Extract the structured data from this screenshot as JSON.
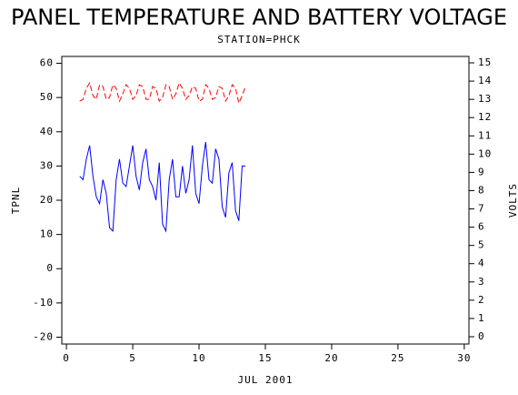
{
  "chart_data": {
    "type": "line",
    "title": "PANEL TEMPERATURE AND BATTERY VOLTAGE",
    "subtitle": "STATION=PHCK",
    "x_label": "JUL 2001",
    "y_label": "TPNL",
    "y2_label": "VOLTS",
    "x": [
      1.0,
      1.25,
      1.5,
      1.75,
      2.0,
      2.25,
      2.5,
      2.75,
      3.0,
      3.25,
      3.5,
      3.75,
      4.0,
      4.25,
      4.5,
      4.75,
      5.0,
      5.25,
      5.5,
      5.75,
      6.0,
      6.25,
      6.5,
      6.75,
      7.0,
      7.25,
      7.5,
      7.75,
      8.0,
      8.25,
      8.5,
      8.75,
      9.0,
      9.25,
      9.5,
      9.75,
      10.0,
      10.25,
      10.5,
      10.75,
      11.0,
      11.25,
      11.5,
      11.75,
      12.0,
      12.25,
      12.5,
      12.75,
      13.0,
      13.25,
      13.5
    ],
    "series": [
      {
        "color": "#0000ff",
        "axis": "y",
        "dash": false,
        "values": [
          27,
          26,
          32,
          36,
          27,
          21,
          19,
          26,
          22,
          12,
          11,
          26,
          32,
          25,
          24,
          30,
          36,
          27,
          23,
          31,
          35,
          26,
          24,
          20,
          31,
          13,
          11,
          26,
          32,
          21,
          21,
          30,
          22,
          26,
          36,
          22,
          19,
          30,
          37,
          26,
          25,
          35,
          32,
          18,
          15,
          28,
          31,
          17,
          14,
          30,
          30
        ]
      },
      {
        "color": "#ff0000",
        "axis": "y2",
        "dash": true,
        "values": [
          12.9,
          13.0,
          13.6,
          13.9,
          13.2,
          13.0,
          13.8,
          13.7,
          13.0,
          13.1,
          13.8,
          13.6,
          12.9,
          13.3,
          13.8,
          13.6,
          13.0,
          13.2,
          13.8,
          13.7,
          13.0,
          13.0,
          13.7,
          13.6,
          12.9,
          13.1,
          13.8,
          13.7,
          13.0,
          13.3,
          13.9,
          13.6,
          13.0,
          13.2,
          13.7,
          13.6,
          12.9,
          13.0,
          13.8,
          13.6,
          13.0,
          13.1,
          13.7,
          13.6,
          12.9,
          13.2,
          13.8,
          13.6,
          12.8,
          13.2,
          13.7
        ]
      }
    ],
    "xlim": [
      -0.35,
      30.35
    ],
    "xticks": [
      0,
      5,
      10,
      15,
      20,
      25,
      30
    ],
    "ylim": [
      -22,
      62
    ],
    "yticks": [
      -20,
      -10,
      0,
      10,
      20,
      30,
      40,
      50,
      60
    ],
    "y2lim": [
      -0.4,
      15.35
    ],
    "y2ticks": [
      0,
      1,
      2,
      3,
      4,
      5,
      6,
      7,
      8,
      9,
      10,
      11,
      12,
      13,
      14,
      15
    ]
  }
}
